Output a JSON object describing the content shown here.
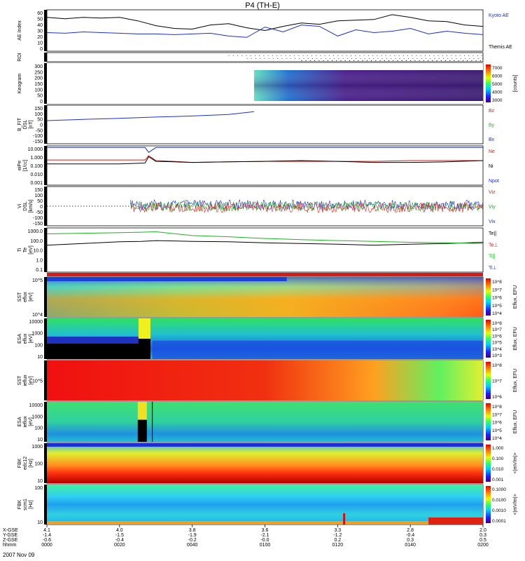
{
  "title": "P4 (TH-E)",
  "colors": {
    "black": "#000000",
    "blue": "#1a2fd6",
    "red": "#d61a1a",
    "green": "#19b51e",
    "roi_dots": "#d61a1a"
  },
  "time_axis": {
    "tick_times": [
      "0000",
      "0020",
      "0040",
      "0100",
      "0120",
      "0140",
      "0200"
    ],
    "rows": [
      {
        "label": "X-GSE",
        "values": [
          "4.1",
          "4.0",
          "3.8",
          "3.6",
          "3.3",
          "2.8",
          "2.0"
        ]
      },
      {
        "label": "Y-GSE",
        "values": [
          "-1.4",
          "-1.5",
          "-1.9",
          "-2.1",
          "-1.2",
          "-0.4",
          "0.3"
        ]
      },
      {
        "label": "Z-GSE",
        "values": [
          "-0.6",
          "-0.4",
          "-0.2",
          "-0.0",
          "0.2",
          "0.3",
          "0.5"
        ]
      },
      {
        "label": "hhmm",
        "values": [
          "0000",
          "0020",
          "0040",
          "0100",
          "0120",
          "0140",
          "0200"
        ]
      }
    ],
    "date": "2007 Nov 09"
  },
  "chart_data": [
    {
      "name": "ae",
      "type": "line",
      "ylabel": "AE Index",
      "ylim": [
        0,
        60
      ],
      "yticks": [
        "60",
        "50",
        "40",
        "30",
        "20",
        "10",
        "0"
      ],
      "legend": [
        "Kyoto AE",
        "Themis AE"
      ],
      "x": [
        0,
        5,
        10,
        15,
        20,
        25,
        30,
        35,
        40,
        45,
        50,
        55,
        60,
        65,
        70,
        75,
        80,
        85,
        90,
        95,
        100,
        105,
        110,
        115,
        120
      ],
      "series": [
        {
          "name": "Kyoto AE",
          "color": "#000000",
          "values": [
            49,
            47,
            49,
            48,
            49,
            44,
            37,
            33,
            32,
            38,
            40,
            34,
            30,
            36,
            41,
            39,
            44,
            45,
            46,
            53,
            49,
            44,
            43,
            38,
            36
          ]
        },
        {
          "name": "Themis AE",
          "color": "#1a2fd6",
          "values": [
            27,
            26,
            28,
            27,
            26,
            25,
            25,
            24,
            25,
            26,
            22,
            20,
            35,
            28,
            38,
            36,
            22,
            31,
            27,
            29,
            33,
            25,
            29,
            26,
            24
          ]
        }
      ]
    },
    {
      "name": "roi",
      "type": "table",
      "ylabel": "ROI"
    },
    {
      "name": "keogram",
      "type": "heatmap",
      "ylabel": "Keogram",
      "yticks": [
        "300",
        "250",
        "200",
        "150",
        "100",
        "50",
        "0"
      ],
      "colorbar": {
        "label": "[counts]",
        "ticks": [
          "7000",
          "6000",
          "5000",
          "4000",
          "3000"
        ]
      }
    },
    {
      "name": "bfit",
      "type": "line",
      "ylabel": "B_FIT\nDSL\n[nT]",
      "ylim": [
        -150,
        150
      ],
      "yticks": [
        "150",
        "100",
        "50",
        "0",
        "-50",
        "-100",
        "-150"
      ],
      "legend": [
        "Bz",
        "By",
        "Bx"
      ],
      "x": [
        0,
        10,
        20,
        30,
        40,
        50,
        57
      ],
      "series": [
        {
          "name": "Bx",
          "color": "#1a2fd6",
          "values": [
            30,
            40,
            48,
            58,
            66,
            78,
            100
          ]
        }
      ]
    },
    {
      "name": "density",
      "type": "line",
      "ylabel": "eiPe\n[1/cc]",
      "yticks": [
        "10.000",
        "1.000",
        "0.100",
        "0.010",
        "0.001"
      ],
      "legend": [
        "Ne",
        "Ni",
        "Npot"
      ],
      "x": [
        0,
        10,
        20,
        27,
        28,
        30,
        35,
        40,
        50,
        60,
        70,
        80,
        90,
        100,
        110,
        120
      ],
      "series": [
        {
          "name": "Ne",
          "color": "#d61a1a",
          "values": [
            0.6,
            0.6,
            0.6,
            0.6,
            2.0,
            0.5,
            0.4,
            0.3,
            0.35,
            0.4,
            0.4,
            0.4,
            0.4,
            0.5,
            0.5,
            0.5
          ]
        },
        {
          "name": "Ni",
          "color": "#000000",
          "values": [
            0.2,
            0.2,
            0.2,
            0.25,
            1.5,
            0.4,
            0.35,
            0.3,
            0.35,
            0.4,
            0.5,
            0.4,
            0.3,
            0.3,
            0.35,
            0.5
          ]
        },
        {
          "name": "Npot",
          "color": "#1a2fd6",
          "values": [
            20,
            20,
            20,
            20,
            5,
            20,
            20,
            20,
            20,
            20,
            20,
            20,
            20,
            20,
            20,
            20
          ]
        }
      ]
    },
    {
      "name": "velocity",
      "type": "line",
      "ylabel": "Vi\nDSL\n[km/s]",
      "ylim": [
        -150,
        150
      ],
      "yticks": [
        "150",
        "100",
        "50",
        "0",
        "-50",
        "-100",
        "-150"
      ],
      "legend": [
        "Viz",
        "Viy",
        "Vix"
      ]
    },
    {
      "name": "temperature",
      "type": "line",
      "ylabel": "Ti\nTe\n[eV]",
      "yticks": [
        "1000.0",
        "100.0",
        "10.0",
        "1.0",
        "0.1"
      ],
      "legend": [
        "Te||",
        "Te⊥",
        "Ti||",
        "Ti⊥"
      ],
      "x": [
        0,
        10,
        20,
        26,
        30,
        40,
        50,
        60,
        70,
        80,
        90,
        100,
        110,
        120
      ],
      "series": [
        {
          "name": "Te||",
          "color": "#000000",
          "values": [
            40,
            60,
            90,
            100,
            120,
            100,
            90,
            70,
            60,
            50,
            40,
            50,
            60,
            80
          ]
        },
        {
          "name": "Ti||",
          "color": "#19b51e",
          "values": [
            600,
            700,
            800,
            900,
            1000,
            400,
            300,
            200,
            150,
            120,
            100,
            80,
            70,
            60
          ]
        }
      ]
    },
    {
      "name": "sst_e_eflux",
      "type": "heatmap",
      "ylabel": "SST\neflux\n[eV]",
      "yticks": [
        "10^5",
        "10^4"
      ],
      "colorbar": {
        "label": "Eflux, EFU",
        "ticks": [
          "10^8",
          "10^7",
          "10^6",
          "10^5",
          "10^4"
        ]
      }
    },
    {
      "name": "esa_e_eflux",
      "type": "heatmap",
      "ylabel": "ESA\neflux\n[eV]",
      "yticks": [
        "10000",
        "1000",
        "100",
        "10"
      ],
      "colorbar": {
        "label": "Eflux, EFU",
        "ticks": [
          "10^8",
          "10^7",
          "10^6",
          "10^5",
          "10^4",
          "10^3"
        ]
      }
    },
    {
      "name": "sst_i_eflux",
      "type": "heatmap",
      "ylabel": "SST\nieflux\n[eV]",
      "yticks": [
        "10^5"
      ],
      "colorbar": {
        "label": "Eflux, EFU",
        "ticks": [
          "10^8",
          "10^7",
          "10^6"
        ]
      }
    },
    {
      "name": "esa_i_eflux",
      "type": "heatmap",
      "ylabel": "ESA\nieflux\n[eV]",
      "yticks": [
        "10000",
        "1000",
        "100",
        "10"
      ],
      "colorbar": {
        "label": "Eflux, EFU",
        "ticks": [
          "10^8",
          "10^7",
          "10^6",
          "10^5",
          "10^4"
        ]
      }
    },
    {
      "name": "fbk_edc12",
      "type": "heatmap",
      "ylabel": "FBK\nedc12\n[Hz]",
      "yticks": [
        "1000",
        "100",
        "10"
      ],
      "colorbar": {
        "label": "<|mV/m|>",
        "ticks": [
          "1.000",
          "0.100",
          "0.010",
          "0.001"
        ]
      }
    },
    {
      "name": "fbk_scm1",
      "type": "heatmap",
      "ylabel": "FBK\nscm1\n[Hz]",
      "yticks": [
        "100",
        "10"
      ],
      "colorbar": {
        "label": "<|mV/m|>",
        "ticks": [
          "0.1000",
          "0.0100",
          "0.0010",
          "0.0001"
        ]
      }
    }
  ]
}
